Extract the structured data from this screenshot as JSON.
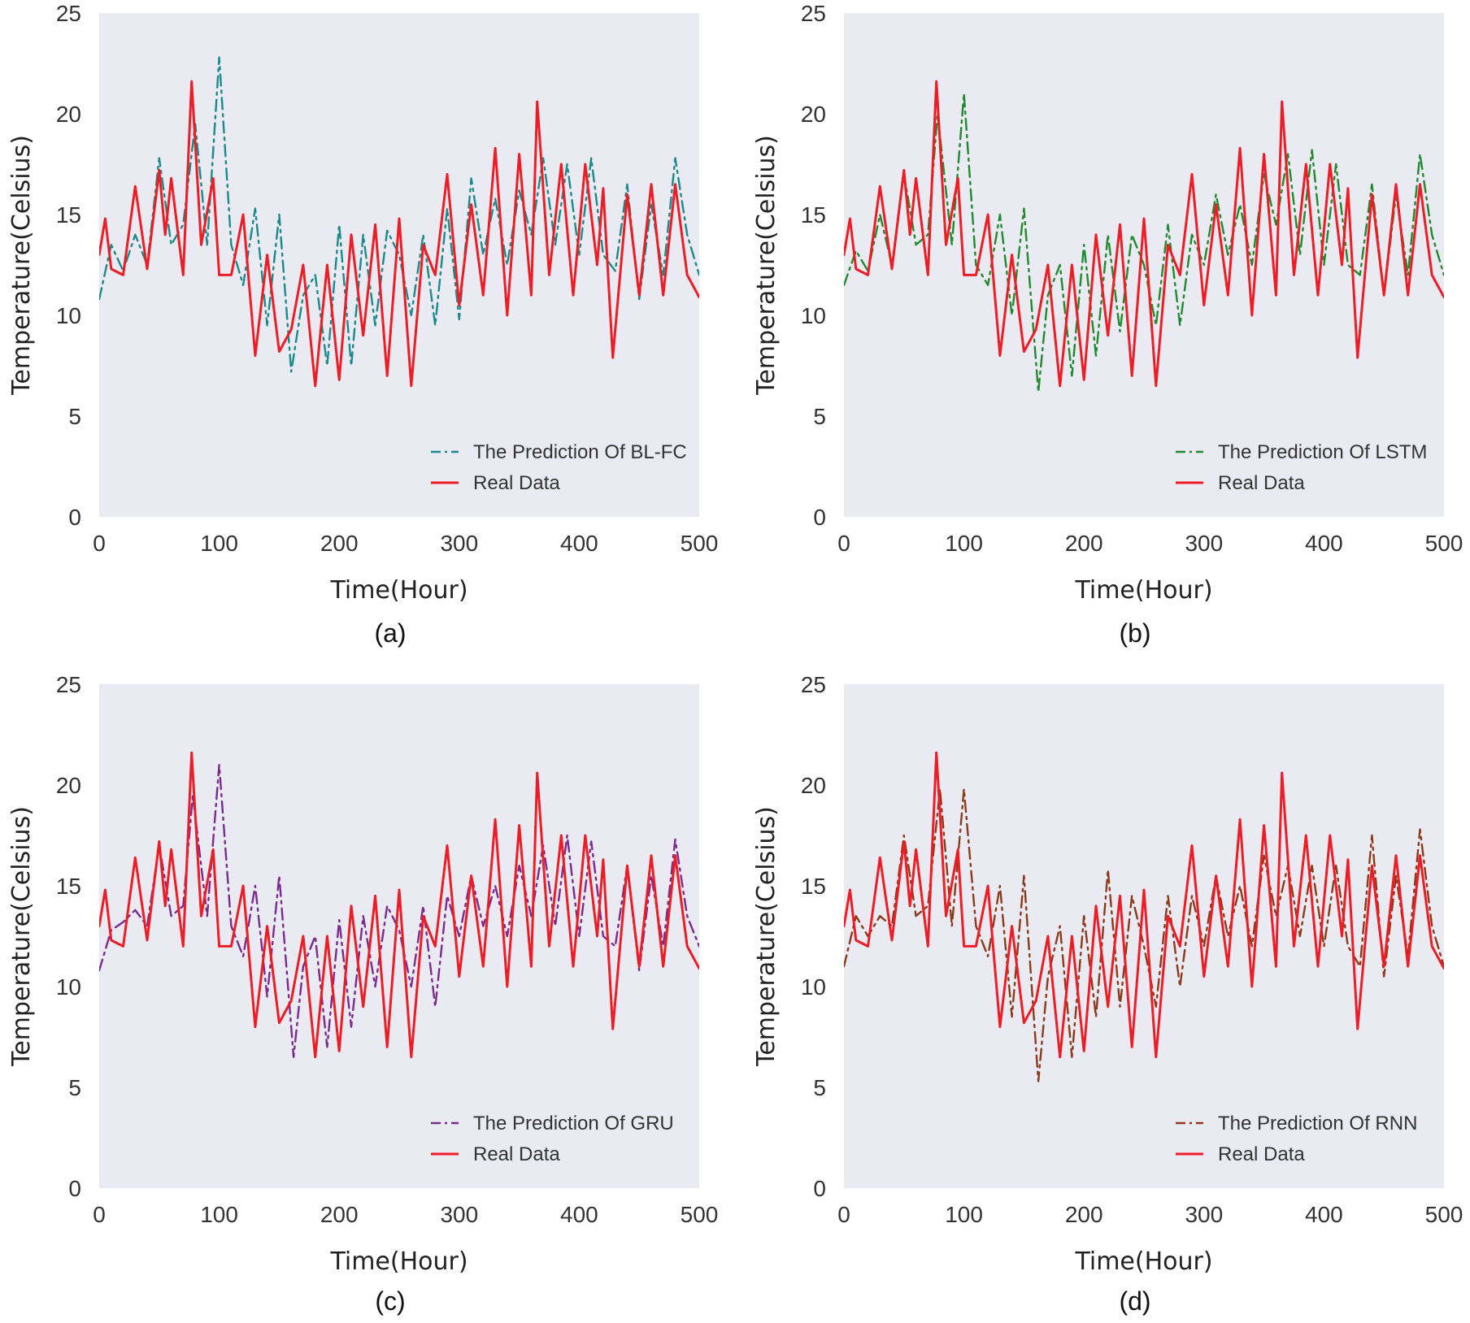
{
  "colors": {
    "real": "#ee1c25",
    "panel_bg": "#eaeaf2"
  },
  "chart_data": [
    {
      "type": "line",
      "caption": "(a)",
      "xlabel": "Time(Hour)",
      "ylabel": "Temperature(Celsius)",
      "xlim": [
        0,
        500
      ],
      "ylim": [
        0,
        25
      ],
      "xticks": [
        "0",
        "100",
        "200",
        "300",
        "400",
        "500"
      ],
      "yticks": [
        "0",
        "5",
        "10",
        "15",
        "20",
        "25"
      ],
      "grid": false,
      "legend": "lower-right",
      "series": [
        {
          "name": "The Prediction Of BL-FC",
          "style": "dashdot",
          "color": "#1a8a8a",
          "x": [
            0,
            10,
            20,
            30,
            40,
            50,
            60,
            70,
            80,
            90,
            100,
            110,
            120,
            130,
            140,
            150,
            160,
            170,
            180,
            190,
            200,
            210,
            220,
            230,
            240,
            250,
            260,
            270,
            280,
            290,
            300,
            310,
            320,
            330,
            340,
            350,
            360,
            370,
            380,
            390,
            400,
            410,
            420,
            430,
            440,
            450,
            460,
            470,
            480,
            490,
            500
          ],
          "y": [
            10.8,
            13.5,
            12.2,
            14.0,
            12.5,
            17.8,
            13.5,
            14.5,
            19.5,
            13.5,
            22.8,
            13.5,
            11.5,
            15.3,
            9.5,
            15.0,
            7.2,
            11.0,
            12.0,
            7.5,
            14.5,
            7.5,
            14.0,
            9.5,
            14.2,
            13.0,
            10.0,
            14.0,
            9.5,
            15.3,
            9.8,
            16.8,
            13.0,
            15.8,
            12.5,
            16.2,
            14.0,
            17.8,
            13.5,
            17.5,
            13.0,
            17.8,
            13.0,
            12.2,
            16.5,
            10.8,
            15.5,
            12.0,
            17.8,
            14.0,
            12.0
          ]
        },
        {
          "name": "Real Data",
          "style": "solid",
          "color": "#ee1c25",
          "x": [
            0,
            5,
            10,
            20,
            30,
            40,
            50,
            55,
            60,
            70,
            77,
            85,
            95,
            100,
            110,
            120,
            130,
            140,
            150,
            160,
            170,
            180,
            190,
            200,
            210,
            220,
            230,
            240,
            250,
            260,
            270,
            280,
            290,
            300,
            310,
            320,
            330,
            340,
            350,
            360,
            365,
            375,
            385,
            395,
            405,
            415,
            420,
            428,
            440,
            450,
            460,
            470,
            480,
            490,
            500
          ],
          "y": [
            13.0,
            14.8,
            12.3,
            12.0,
            16.4,
            12.3,
            17.2,
            14.0,
            16.8,
            12.0,
            21.6,
            13.5,
            16.8,
            12.0,
            12.0,
            15.0,
            8.0,
            13.0,
            8.2,
            9.3,
            12.5,
            6.5,
            12.5,
            6.8,
            14.0,
            9.0,
            14.5,
            7.0,
            14.8,
            6.5,
            13.5,
            12.0,
            17.0,
            10.5,
            15.5,
            11.0,
            18.3,
            10.0,
            18.0,
            11.0,
            20.6,
            12.0,
            17.5,
            11.0,
            17.5,
            12.5,
            16.3,
            7.9,
            16.0,
            11.0,
            16.5,
            11.0,
            16.5,
            12.0,
            10.9
          ]
        }
      ]
    },
    {
      "type": "line",
      "caption": "(b)",
      "xlabel": "Time(Hour)",
      "ylabel": "Temperature(Celsius)",
      "xlim": [
        0,
        500
      ],
      "ylim": [
        0,
        25
      ],
      "xticks": [
        "0",
        "100",
        "200",
        "300",
        "400",
        "500"
      ],
      "yticks": [
        "0",
        "5",
        "10",
        "15",
        "20",
        "25"
      ],
      "grid": false,
      "legend": "lower-right",
      "series": [
        {
          "name": "The Prediction Of LSTM",
          "style": "dashdot",
          "color": "#1f8a2e",
          "x": [
            0,
            10,
            20,
            30,
            40,
            50,
            60,
            70,
            78,
            90,
            100,
            110,
            120,
            130,
            140,
            150,
            162,
            170,
            180,
            190,
            200,
            210,
            220,
            230,
            240,
            250,
            260,
            270,
            280,
            290,
            300,
            310,
            320,
            330,
            340,
            350,
            360,
            370,
            380,
            390,
            400,
            410,
            420,
            430,
            440,
            450,
            460,
            470,
            480,
            490,
            500
          ],
          "y": [
            11.5,
            13.2,
            12.2,
            15.0,
            12.5,
            17.0,
            13.5,
            14.0,
            20.0,
            13.5,
            21.0,
            12.5,
            11.5,
            15.0,
            10.0,
            15.3,
            6.2,
            11.0,
            12.5,
            7.0,
            13.5,
            8.0,
            14.0,
            9.2,
            14.0,
            12.5,
            9.5,
            14.5,
            9.5,
            14.0,
            12.5,
            16.0,
            13.0,
            15.5,
            12.5,
            17.0,
            14.5,
            18.0,
            13.0,
            18.2,
            12.5,
            17.5,
            12.5,
            12.0,
            16.5,
            11.0,
            16.0,
            12.0,
            18.0,
            14.0,
            12.0
          ]
        },
        {
          "name": "Real Data",
          "style": "solid",
          "color": "#ee1c25",
          "x": [
            0,
            5,
            10,
            20,
            30,
            40,
            50,
            55,
            60,
            70,
            77,
            85,
            95,
            100,
            110,
            120,
            130,
            140,
            150,
            160,
            170,
            180,
            190,
            200,
            210,
            220,
            230,
            240,
            250,
            260,
            270,
            280,
            290,
            300,
            310,
            320,
            330,
            340,
            350,
            360,
            365,
            375,
            385,
            395,
            405,
            415,
            420,
            428,
            440,
            450,
            460,
            470,
            480,
            490,
            500
          ],
          "y": [
            13.0,
            14.8,
            12.3,
            12.0,
            16.4,
            12.3,
            17.2,
            14.0,
            16.8,
            12.0,
            21.6,
            13.5,
            16.8,
            12.0,
            12.0,
            15.0,
            8.0,
            13.0,
            8.2,
            9.3,
            12.5,
            6.5,
            12.5,
            6.8,
            14.0,
            9.0,
            14.5,
            7.0,
            14.8,
            6.5,
            13.5,
            12.0,
            17.0,
            10.5,
            15.5,
            11.0,
            18.3,
            10.0,
            18.0,
            11.0,
            20.6,
            12.0,
            17.5,
            11.0,
            17.5,
            12.5,
            16.3,
            7.9,
            16.0,
            11.0,
            16.5,
            11.0,
            16.5,
            12.0,
            10.9
          ]
        }
      ]
    },
    {
      "type": "line",
      "caption": "(c)",
      "xlabel": "Time(Hour)",
      "ylabel": "Temperature(Celsius)",
      "xlim": [
        0,
        500
      ],
      "ylim": [
        0,
        25
      ],
      "xticks": [
        "0",
        "100",
        "200",
        "300",
        "400",
        "500"
      ],
      "yticks": [
        "0",
        "5",
        "10",
        "15",
        "20",
        "25"
      ],
      "grid": false,
      "legend": "lower-right",
      "series": [
        {
          "name": "The Prediction Of GRU",
          "style": "dashdot",
          "color": "#7b2a8e",
          "x": [
            0,
            10,
            20,
            30,
            40,
            50,
            60,
            70,
            78,
            90,
            100,
            110,
            120,
            130,
            140,
            150,
            162,
            170,
            180,
            190,
            200,
            210,
            220,
            230,
            240,
            250,
            260,
            270,
            280,
            290,
            300,
            310,
            320,
            330,
            340,
            350,
            360,
            370,
            380,
            390,
            400,
            410,
            420,
            430,
            440,
            450,
            460,
            470,
            480,
            490,
            500
          ],
          "y": [
            10.8,
            12.8,
            13.2,
            13.8,
            13.0,
            17.0,
            13.5,
            14.0,
            19.5,
            13.5,
            21.0,
            13.0,
            11.5,
            15.0,
            9.5,
            15.5,
            6.5,
            11.0,
            12.5,
            7.0,
            13.3,
            8.0,
            13.5,
            10.0,
            14.0,
            12.8,
            10.0,
            14.0,
            9.0,
            14.5,
            12.5,
            15.5,
            13.0,
            15.0,
            12.5,
            16.0,
            13.5,
            17.0,
            13.0,
            17.5,
            12.5,
            17.2,
            12.5,
            12.0,
            16.0,
            10.8,
            15.5,
            12.0,
            17.3,
            13.5,
            12.0
          ]
        },
        {
          "name": "Real Data",
          "style": "solid",
          "color": "#ee1c25",
          "x": [
            0,
            5,
            10,
            20,
            30,
            40,
            50,
            55,
            60,
            70,
            77,
            85,
            95,
            100,
            110,
            120,
            130,
            140,
            150,
            160,
            170,
            180,
            190,
            200,
            210,
            220,
            230,
            240,
            250,
            260,
            270,
            280,
            290,
            300,
            310,
            320,
            330,
            340,
            350,
            360,
            365,
            375,
            385,
            395,
            405,
            415,
            420,
            428,
            440,
            450,
            460,
            470,
            480,
            490,
            500
          ],
          "y": [
            13.0,
            14.8,
            12.3,
            12.0,
            16.4,
            12.3,
            17.2,
            14.0,
            16.8,
            12.0,
            21.6,
            13.5,
            16.8,
            12.0,
            12.0,
            15.0,
            8.0,
            13.0,
            8.2,
            9.3,
            12.5,
            6.5,
            12.5,
            6.8,
            14.0,
            9.0,
            14.5,
            7.0,
            14.8,
            6.5,
            13.5,
            12.0,
            17.0,
            10.5,
            15.5,
            11.0,
            18.3,
            10.0,
            18.0,
            11.0,
            20.6,
            12.0,
            17.5,
            11.0,
            17.5,
            12.5,
            16.3,
            7.9,
            16.0,
            11.0,
            16.5,
            11.0,
            16.5,
            12.0,
            10.9
          ]
        }
      ]
    },
    {
      "type": "line",
      "caption": "(d)",
      "xlabel": "Time(Hour)",
      "ylabel": "Temperature(Celsius)",
      "xlim": [
        0,
        500
      ],
      "ylim": [
        0,
        25
      ],
      "xticks": [
        "0",
        "100",
        "200",
        "300",
        "400",
        "500"
      ],
      "yticks": [
        "0",
        "5",
        "10",
        "15",
        "20",
        "25"
      ],
      "grid": false,
      "legend": "lower-right",
      "series": [
        {
          "name": "The Prediction Of RNN",
          "style": "dashdot",
          "color": "#8b3a1a",
          "x": [
            0,
            10,
            20,
            30,
            40,
            50,
            60,
            70,
            80,
            90,
            100,
            110,
            120,
            130,
            140,
            150,
            162,
            170,
            180,
            190,
            200,
            210,
            220,
            230,
            240,
            250,
            260,
            270,
            280,
            290,
            300,
            310,
            320,
            330,
            340,
            350,
            360,
            370,
            380,
            390,
            400,
            410,
            420,
            430,
            440,
            450,
            460,
            470,
            480,
            490,
            500
          ],
          "y": [
            11.0,
            13.5,
            12.5,
            13.5,
            13.0,
            17.5,
            13.5,
            14.0,
            19.8,
            13.0,
            19.8,
            13.0,
            11.5,
            15.0,
            8.5,
            15.5,
            5.3,
            10.5,
            13.0,
            6.5,
            13.5,
            8.5,
            15.8,
            9.0,
            14.5,
            12.0,
            9.0,
            14.5,
            10.0,
            14.5,
            12.0,
            15.5,
            12.5,
            15.0,
            12.0,
            16.5,
            13.5,
            16.0,
            12.5,
            16.0,
            12.0,
            16.0,
            12.0,
            11.0,
            17.5,
            10.5,
            15.5,
            11.5,
            17.8,
            13.0,
            11.0
          ]
        },
        {
          "name": "Real Data",
          "style": "solid",
          "color": "#ee1c25",
          "x": [
            0,
            5,
            10,
            20,
            30,
            40,
            50,
            55,
            60,
            70,
            77,
            85,
            95,
            100,
            110,
            120,
            130,
            140,
            150,
            160,
            170,
            180,
            190,
            200,
            210,
            220,
            230,
            240,
            250,
            260,
            270,
            280,
            290,
            300,
            310,
            320,
            330,
            340,
            350,
            360,
            365,
            375,
            385,
            395,
            405,
            415,
            420,
            428,
            440,
            450,
            460,
            470,
            480,
            490,
            500
          ],
          "y": [
            13.0,
            14.8,
            12.3,
            12.0,
            16.4,
            12.3,
            17.2,
            14.0,
            16.8,
            12.0,
            21.6,
            13.5,
            16.8,
            12.0,
            12.0,
            15.0,
            8.0,
            13.0,
            8.2,
            9.3,
            12.5,
            6.5,
            12.5,
            6.8,
            14.0,
            9.0,
            14.5,
            7.0,
            14.8,
            6.5,
            13.5,
            12.0,
            17.0,
            10.5,
            15.5,
            11.0,
            18.3,
            10.0,
            18.0,
            11.0,
            20.6,
            12.0,
            17.5,
            11.0,
            17.5,
            12.5,
            16.3,
            7.9,
            16.0,
            11.0,
            16.5,
            11.0,
            16.5,
            12.0,
            10.9
          ]
        }
      ]
    }
  ]
}
